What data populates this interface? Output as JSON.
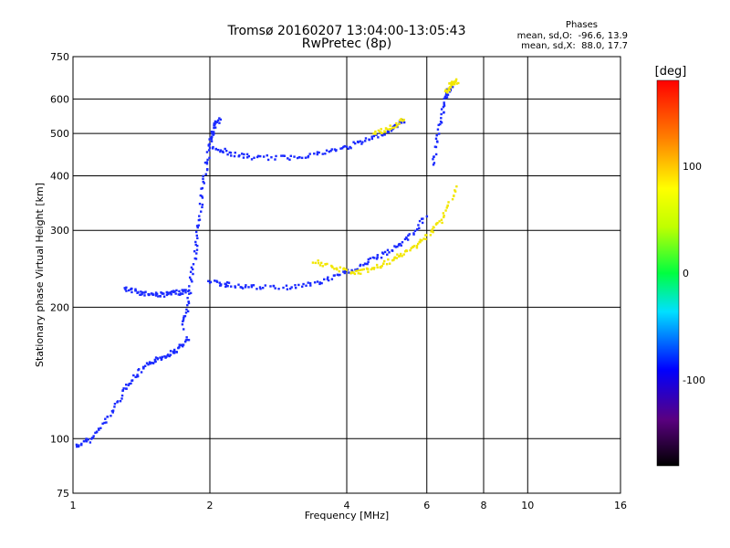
{
  "header": {
    "title": "Tromsø 20160207 13:04:00-13:05:43",
    "subtitle": "RwPretec (8p)"
  },
  "stats": {
    "heading": "Phases",
    "line_o": "mean, sd,O:  -96.6, 13.9",
    "line_x": "mean, sd,X:  88.0, 17.7"
  },
  "chart_data": {
    "type": "scatter",
    "xlabel": "Frequency [MHz]",
    "ylabel": "Stationary phase Virtual Height [km]",
    "xscale": "log",
    "yscale": "log",
    "xlim": [
      1,
      16
    ],
    "ylim": [
      75,
      750
    ],
    "xticks": [
      1,
      2,
      4,
      6,
      8,
      10,
      16
    ],
    "xticklabels": [
      "1",
      "2",
      "4",
      "6",
      "8",
      "10",
      "16"
    ],
    "yticks": [
      75,
      100,
      200,
      300,
      400,
      500,
      600,
      750
    ],
    "yticklabels": [
      "75",
      "100",
      "200",
      "300",
      "400",
      "500",
      "600",
      "750"
    ],
    "grid": true,
    "colorbar": {
      "label": "[deg]",
      "range": [
        -180,
        180
      ],
      "ticks": [
        100,
        0,
        -100
      ],
      "ticklabels": [
        "100",
        "0",
        "-100"
      ]
    },
    "traces": [
      {
        "x": [
          1.02,
          1.1,
          1.2,
          1.3,
          1.4,
          1.5,
          1.6,
          1.7,
          1.8
        ],
        "y": [
          96,
          100,
          112,
          130,
          142,
          150,
          155,
          160,
          170
        ],
        "phase": -100
      },
      {
        "x": [
          1.3,
          1.4,
          1.5,
          1.6,
          1.7,
          1.8
        ],
        "y": [
          220,
          216,
          214,
          214,
          216,
          218
        ],
        "phase": -100
      },
      {
        "x": [
          1.75,
          1.8,
          1.85,
          1.9,
          1.95,
          2.0,
          2.05,
          2.1
        ],
        "y": [
          180,
          210,
          260,
          320,
          400,
          480,
          520,
          540
        ],
        "phase": -100
      },
      {
        "x": [
          2.0,
          2.2,
          2.5,
          3.0,
          3.5,
          4.0,
          4.5,
          5.0,
          5.4
        ],
        "y": [
          470,
          450,
          440,
          440,
          450,
          465,
          485,
          510,
          540
        ],
        "phase": -100
      },
      {
        "x": [
          4.6,
          5.0,
          5.4
        ],
        "y": [
          500,
          515,
          545
        ],
        "phase": 100
      },
      {
        "x": [
          2.0,
          2.2,
          2.5,
          3.0,
          3.5,
          4.0,
          4.5,
          5.0,
          5.5,
          6.0
        ],
        "y": [
          228,
          225,
          222,
          222,
          228,
          240,
          255,
          270,
          290,
          325
        ],
        "phase": -100
      },
      {
        "x": [
          3.4,
          3.8,
          4.2,
          4.6,
          5.0,
          5.5,
          6.0,
          6.5,
          7.0
        ],
        "y": [
          255,
          245,
          240,
          245,
          255,
          270,
          290,
          320,
          380
        ],
        "phase": 100
      },
      {
        "x": [
          6.2,
          6.4,
          6.6,
          6.8
        ],
        "y": [
          420,
          520,
          600,
          650
        ],
        "phase": -100
      },
      {
        "x": [
          6.6,
          6.8,
          7.0
        ],
        "y": [
          620,
          650,
          660
        ],
        "phase": 100
      }
    ]
  }
}
